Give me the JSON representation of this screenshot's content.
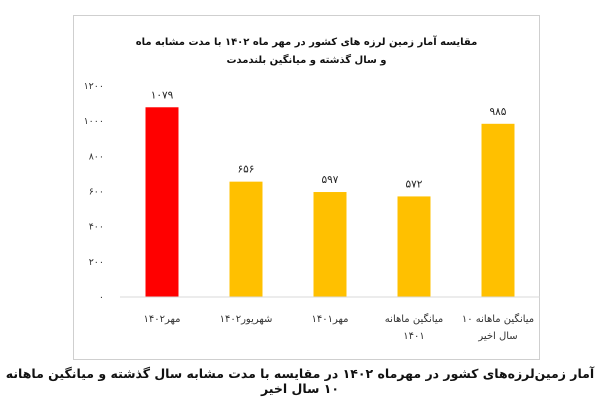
{
  "caption": "آمار زمین‌لرزه‌های کشور در مهرماه ۱۴۰۲ در مقایسه با مدت مشابه سال گذشته و میانگین ماهانه ۱۰ سال اخیر",
  "chart_data": {
    "type": "bar",
    "title": "مقایسه آمار زمین لرزه های کشور در مهر ماه ۱۴۰۲ با مدت مشابه ماه و سال گذشته و میانگین بلندمدت",
    "categories": [
      [
        "مهر۱۴۰۲"
      ],
      [
        "شهریور۱۴۰۲"
      ],
      [
        "مهر۱۴۰۱"
      ],
      [
        "میانگین ماهانه",
        "۱۴۰۱"
      ],
      [
        "میانگین ماهانه ۱۰",
        "سال اخیر"
      ]
    ],
    "values": [
      1079,
      656,
      597,
      572,
      985
    ],
    "value_labels": [
      "۱۰۷۹",
      "۶۵۶",
      "۵۹۷",
      "۵۷۲",
      "۹۸۵"
    ],
    "colors": [
      "#ff0000",
      "#ffc000",
      "#ffc000",
      "#ffc000",
      "#ffc000"
    ],
    "ylim": [
      0,
      1200
    ],
    "yticks": [
      0,
      200,
      400,
      600,
      800,
      1000,
      1200
    ],
    "ytick_labels": [
      "۰",
      "۲۰۰",
      "۴۰۰",
      "۶۰۰",
      "۸۰۰",
      "۱۰۰۰",
      "۱۲۰۰"
    ],
    "grid": false,
    "legend": "none"
  }
}
